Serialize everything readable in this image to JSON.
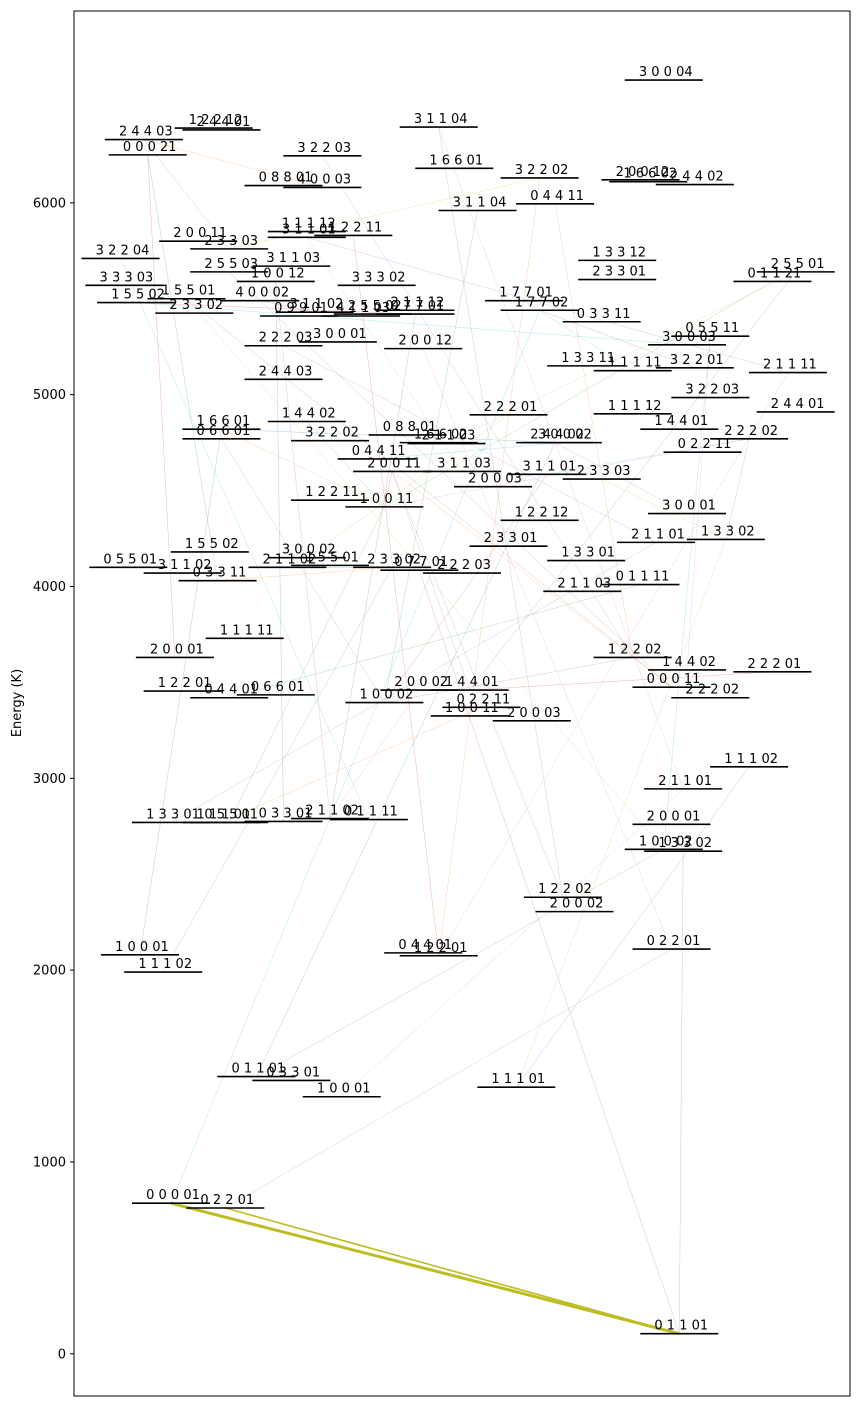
{
  "chart_data": {
    "type": "scatter",
    "ylabel": "Energy (K)",
    "ylim": [
      -220,
      7000
    ],
    "xlim": [
      0,
      1
    ],
    "yticks": [
      0,
      1000,
      2000,
      3000,
      4000,
      5000,
      6000
    ],
    "grid": false,
    "levels": [
      {
        "label": "0 1 1 01",
        "energy": 105,
        "x": 0.78
      },
      {
        "label": "0 0 0 01",
        "energy": 785,
        "x": 0.125
      },
      {
        "label": "0 2 2 01",
        "energy": 760,
        "x": 0.195
      },
      {
        "label": "0 1 1 01",
        "energy": 1445,
        "x": 0.235
      },
      {
        "label": "0 3 3 01",
        "energy": 1425,
        "x": 0.28
      },
      {
        "label": "1 0 0 01",
        "energy": 1340,
        "x": 0.345
      },
      {
        "label": "1 1 1 01",
        "energy": 1390,
        "x": 0.57
      },
      {
        "label": "1 0 0 01",
        "energy": 2080,
        "x": 0.085
      },
      {
        "label": "1 1 1 02",
        "energy": 1990,
        "x": 0.115
      },
      {
        "label": "0 4 4 01",
        "energy": 2090,
        "x": 0.45
      },
      {
        "label": "1 2 2 01",
        "energy": 2075,
        "x": 0.47
      },
      {
        "label": "0 2 2 01",
        "energy": 2110,
        "x": 0.77
      },
      {
        "label": "1 2 2 02",
        "energy": 2380,
        "x": 0.63
      },
      {
        "label": "2 0 0 02",
        "energy": 2305,
        "x": 0.645
      },
      {
        "label": "1 3 3 01",
        "energy": 2770,
        "x": 0.125
      },
      {
        "label": "1 1 1 01",
        "energy": 2770,
        "x": 0.19
      },
      {
        "label": "0 5 5 01",
        "energy": 2770,
        "x": 0.2
      },
      {
        "label": "0 3 3 01",
        "energy": 2775,
        "x": 0.27
      },
      {
        "label": "2 1 1 02",
        "energy": 2790,
        "x": 0.33
      },
      {
        "label": "0 1 1 11",
        "energy": 2785,
        "x": 0.38
      },
      {
        "label": "2 0 0 01",
        "energy": 2760,
        "x": 0.77
      },
      {
        "label": "1 0 0 02",
        "energy": 2630,
        "x": 0.76
      },
      {
        "label": "1 3 3 02",
        "energy": 2620,
        "x": 0.785
      },
      {
        "label": "2 1 1 01",
        "energy": 2945,
        "x": 0.785
      },
      {
        "label": "1 1 1 02",
        "energy": 3060,
        "x": 0.87
      },
      {
        "label": "2 0 0 01",
        "energy": 3630,
        "x": 0.13
      },
      {
        "label": "1 1 1 11",
        "energy": 3730,
        "x": 0.22
      },
      {
        "label": "1 2 2 01",
        "energy": 3455,
        "x": 0.14
      },
      {
        "label": "0 6 6 01",
        "energy": 3435,
        "x": 0.26
      },
      {
        "label": "0 4 4 01",
        "energy": 3420,
        "x": 0.2
      },
      {
        "label": "2 0 0 02",
        "energy": 3460,
        "x": 0.445
      },
      {
        "label": "1 4 4 01",
        "energy": 3460,
        "x": 0.51
      },
      {
        "label": "1 0 0 02",
        "energy": 3395,
        "x": 0.4
      },
      {
        "label": "0 2 2 11",
        "energy": 3370,
        "x": 0.525
      },
      {
        "label": "1 0 0 11",
        "energy": 3325,
        "x": 0.51
      },
      {
        "label": "2 0 0 03",
        "energy": 3300,
        "x": 0.59
      },
      {
        "label": "1 2 2 02",
        "energy": 3630,
        "x": 0.72
      },
      {
        "label": "1 4 4 02",
        "energy": 3565,
        "x": 0.79
      },
      {
        "label": "0 0 0 11",
        "energy": 3475,
        "x": 0.77
      },
      {
        "label": "2 2 2 02",
        "energy": 3420,
        "x": 0.82
      },
      {
        "label": "2 2 2 01",
        "energy": 3555,
        "x": 0.9
      },
      {
        "label": "0 5 5 01",
        "energy": 4100,
        "x": 0.07
      },
      {
        "label": "1 5 5 02",
        "energy": 4180,
        "x": 0.175
      },
      {
        "label": "3 1 1 02",
        "energy": 4070,
        "x": 0.14
      },
      {
        "label": "0 3 3 11",
        "energy": 4030,
        "x": 0.185
      },
      {
        "label": "3 0 0 02",
        "energy": 4150,
        "x": 0.3
      },
      {
        "label": "1 5 5 01",
        "energy": 4110,
        "x": 0.33
      },
      {
        "label": "2 1 1 02",
        "energy": 4100,
        "x": 0.275
      },
      {
        "label": "2 3 3 02",
        "energy": 4100,
        "x": 0.41
      },
      {
        "label": "0 7 7 01",
        "energy": 4085,
        "x": 0.445
      },
      {
        "label": "2 2 2 03",
        "energy": 4070,
        "x": 0.5
      },
      {
        "label": "2 3 3 01",
        "energy": 4210,
        "x": 0.56
      },
      {
        "label": "1 3 3 01",
        "energy": 4135,
        "x": 0.66
      },
      {
        "label": "0 1 1 11",
        "energy": 4010,
        "x": 0.73
      },
      {
        "label": "2 1 1 03",
        "energy": 3975,
        "x": 0.655
      },
      {
        "label": "2 1 1 01",
        "energy": 4230,
        "x": 0.75
      },
      {
        "label": "1 3 3 02",
        "energy": 4245,
        "x": 0.84
      },
      {
        "label": "3 0 0 01",
        "energy": 4380,
        "x": 0.79
      },
      {
        "label": "1 2 2 12",
        "energy": 4345,
        "x": 0.6
      },
      {
        "label": "1 2 2 11",
        "energy": 4450,
        "x": 0.33
      },
      {
        "label": "1 0 0 11",
        "energy": 4415,
        "x": 0.4
      },
      {
        "label": "2 0 0 11",
        "energy": 4600,
        "x": 0.41
      },
      {
        "label": "3 1 1 03",
        "energy": 4600,
        "x": 0.5
      },
      {
        "label": "2 0 0 03",
        "energy": 4520,
        "x": 0.54
      },
      {
        "label": "3 1 1 01",
        "energy": 4585,
        "x": 0.61
      },
      {
        "label": "2 3 3 03",
        "energy": 4560,
        "x": 0.68
      },
      {
        "label": "0 4 4 11",
        "energy": 4665,
        "x": 0.39
      },
      {
        "label": "1 6 6 01",
        "energy": 4820,
        "x": 0.19
      },
      {
        "label": "0 6 6 01",
        "energy": 4770,
        "x": 0.19
      },
      {
        "label": "1 4 4 02",
        "energy": 4860,
        "x": 0.3
      },
      {
        "label": "3 2 2 02",
        "energy": 4760,
        "x": 0.33
      },
      {
        "label": "0 8 8 01",
        "energy": 4790,
        "x": 0.43
      },
      {
        "label": "1 6 6 02",
        "energy": 4750,
        "x": 0.47
      },
      {
        "label": "2 1 1 03",
        "energy": 4745,
        "x": 0.48
      },
      {
        "label": "2 2 2 01",
        "energy": 4895,
        "x": 0.56
      },
      {
        "label": "2 4 4 02",
        "energy": 4750,
        "x": 0.62
      },
      {
        "label": "3 0 0 02",
        "energy": 4750,
        "x": 0.63
      },
      {
        "label": "1 1 1 12",
        "energy": 4900,
        "x": 0.72
      },
      {
        "label": "1 4 4 01",
        "energy": 4820,
        "x": 0.78
      },
      {
        "label": "0 2 2 11",
        "energy": 4700,
        "x": 0.81
      },
      {
        "label": "2 2 2 02",
        "energy": 4770,
        "x": 0.87
      },
      {
        "label": "2 4 4 01",
        "energy": 4910,
        "x": 0.93
      },
      {
        "label": "2 2 2 03",
        "energy": 5255,
        "x": 0.27
      },
      {
        "label": "2 4 4 03",
        "energy": 5080,
        "x": 0.27
      },
      {
        "label": "3 0 0 01",
        "energy": 5275,
        "x": 0.34
      },
      {
        "label": "2 0 0 12",
        "energy": 5240,
        "x": 0.45
      },
      {
        "label": "1 3 3 11",
        "energy": 5150,
        "x": 0.66
      },
      {
        "label": "1 1 1 11",
        "energy": 5125,
        "x": 0.72
      },
      {
        "label": "3 0 0 03",
        "energy": 5260,
        "x": 0.79
      },
      {
        "label": "3 2 2 01",
        "energy": 5140,
        "x": 0.8
      },
      {
        "label": "2 1 1 11",
        "energy": 5115,
        "x": 0.92
      },
      {
        "label": "3 2 2 03",
        "energy": 4985,
        "x": 0.82
      },
      {
        "label": "1 5 5 01",
        "energy": 5500,
        "x": 0.145
      },
      {
        "label": "1 5 5 02",
        "energy": 5480,
        "x": 0.08
      },
      {
        "label": "2 3 3 02",
        "energy": 5425,
        "x": 0.155
      },
      {
        "label": "4 0 0 02",
        "energy": 5490,
        "x": 0.24
      },
      {
        "label": "3 1 1 02",
        "energy": 5430,
        "x": 0.31
      },
      {
        "label": "2 5 5 02",
        "energy": 5420,
        "x": 0.385
      },
      {
        "label": "0 9 9 01",
        "energy": 5410,
        "x": 0.29
      },
      {
        "label": "4 1 1 03",
        "energy": 5410,
        "x": 0.37
      },
      {
        "label": "2 1 1 12",
        "energy": 5440,
        "x": 0.44
      },
      {
        "label": "0 7 7 01",
        "energy": 5420,
        "x": 0.44
      },
      {
        "label": "1 7 7 01",
        "energy": 5490,
        "x": 0.58
      },
      {
        "label": "1 7 7 02",
        "energy": 5440,
        "x": 0.6
      },
      {
        "label": "0 3 3 11",
        "energy": 5380,
        "x": 0.68
      },
      {
        "label": "0 5 5 11",
        "energy": 5305,
        "x": 0.82
      },
      {
        "label": "3 3 3 03",
        "energy": 5570,
        "x": 0.065
      },
      {
        "label": "2 5 5 03",
        "energy": 5640,
        "x": 0.2
      },
      {
        "label": "1 0 0 12",
        "energy": 5590,
        "x": 0.26
      },
      {
        "label": "3 1 1 03",
        "energy": 5670,
        "x": 0.28
      },
      {
        "label": "3 3 3 02",
        "energy": 5570,
        "x": 0.39
      },
      {
        "label": "2 3 3 01",
        "energy": 5600,
        "x": 0.7
      },
      {
        "label": "1 3 3 12",
        "energy": 5700,
        "x": 0.7
      },
      {
        "label": "2 5 5 01",
        "energy": 5640,
        "x": 0.93
      },
      {
        "label": "0 1 1 21",
        "energy": 5590,
        "x": 0.9
      },
      {
        "label": "3 2 2 04",
        "energy": 5710,
        "x": 0.06
      },
      {
        "label": "2 0 0 11",
        "energy": 5800,
        "x": 0.16
      },
      {
        "label": "2 3 3 03",
        "energy": 5760,
        "x": 0.2
      },
      {
        "label": "1 1 1 12",
        "energy": 5850,
        "x": 0.3
      },
      {
        "label": "3 1 1 01",
        "energy": 5820,
        "x": 0.3
      },
      {
        "label": "1 2 2 11",
        "energy": 5830,
        "x": 0.36
      },
      {
        "label": "3 1 1 04",
        "energy": 5960,
        "x": 0.52
      },
      {
        "label": "0 4 4 11",
        "energy": 5995,
        "x": 0.62
      },
      {
        "label": "1 6 6 02",
        "energy": 6110,
        "x": 0.74
      },
      {
        "label": "2 4 4 02",
        "energy": 6095,
        "x": 0.8
      },
      {
        "label": "2 0 0 12",
        "energy": 6120,
        "x": 0.73
      },
      {
        "label": "3 2 2 02",
        "energy": 6130,
        "x": 0.6
      },
      {
        "label": "0 8 8 01",
        "energy": 6090,
        "x": 0.27
      },
      {
        "label": "4 0 0 03",
        "energy": 6080,
        "x": 0.32
      },
      {
        "label": "1 6 6 01",
        "energy": 6180,
        "x": 0.49
      },
      {
        "label": "0 0 0 21",
        "energy": 6250,
        "x": 0.095
      },
      {
        "label": "3 2 2 03",
        "energy": 6245,
        "x": 0.32
      },
      {
        "label": "2 4 4 03",
        "energy": 6330,
        "x": 0.09
      },
      {
        "label": "2 4 4 01",
        "energy": 6380,
        "x": 0.19
      },
      {
        "label": "1 2 2 12",
        "energy": 6390,
        "x": 0.18
      },
      {
        "label": "3 1 1 04",
        "energy": 6395,
        "x": 0.47
      },
      {
        "label": "3 0 0 04",
        "energy": 6640,
        "x": 0.76
      }
    ],
    "transitions": [
      {
        "from": 1,
        "to": 0,
        "color": "#bcbd22",
        "width": 3
      },
      {
        "from": 2,
        "to": 0,
        "color": "#bcbd22",
        "width": 1.6
      }
    ]
  },
  "colors": {
    "faint_transitions": [
      "#1f77b4",
      "#ff7f0e",
      "#2ca02c",
      "#d62728",
      "#9467bd",
      "#8c564b",
      "#e377c2",
      "#7f7f7f",
      "#bcbd22",
      "#17becf"
    ]
  }
}
